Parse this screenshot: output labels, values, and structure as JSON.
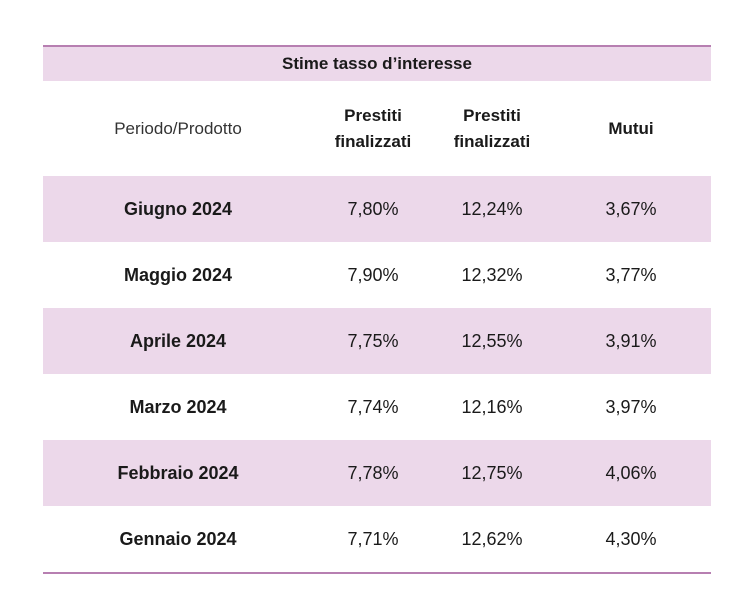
{
  "table": {
    "title": "Stime tasso d’interesse",
    "header": {
      "period": "Periodo/Prodotto",
      "col1_line1": "Prestiti",
      "col1_line2": "finalizzati",
      "col2_line1": "Prestiti",
      "col2_line2": "finalizzati",
      "col3": "Mutui"
    },
    "rows": [
      {
        "period": "Giugno 2024",
        "v1": "7,80%",
        "v2": "12,24%",
        "v3": "3,67%"
      },
      {
        "period": "Maggio 2024",
        "v1": "7,90%",
        "v2": "12,32%",
        "v3": "3,77%"
      },
      {
        "period": "Aprile 2024",
        "v1": "7,75%",
        "v2": "12,55%",
        "v3": "3,91%"
      },
      {
        "period": "Marzo 2024",
        "v1": "7,74%",
        "v2": "12,16%",
        "v3": "3,97%"
      },
      {
        "period": "Febbraio 2024",
        "v1": "7,78%",
        "v2": "12,75%",
        "v3": "4,06%"
      },
      {
        "period": "Gennaio 2024",
        "v1": "7,71%",
        "v2": "12,62%",
        "v3": "4,30%"
      }
    ],
    "colors": {
      "band": "#ecd8ea",
      "rule": "#b77fb1"
    }
  }
}
